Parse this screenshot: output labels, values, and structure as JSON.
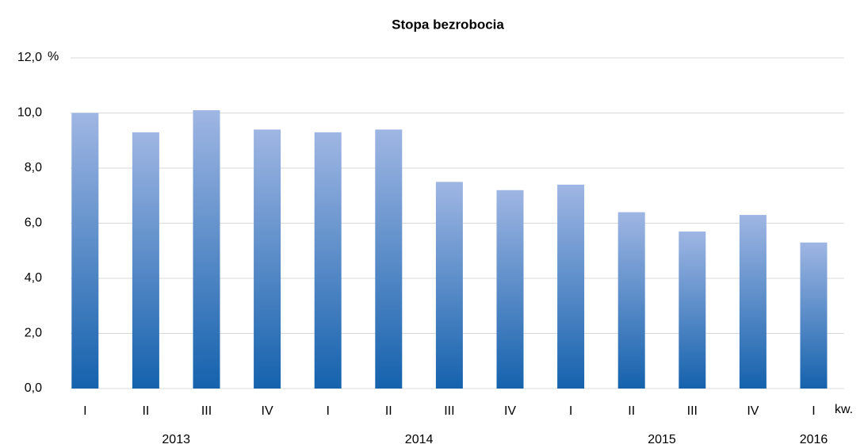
{
  "chart_data": {
    "type": "bar",
    "title": "Stopa bezrobocia",
    "y_unit": "%",
    "x_unit": "kw.",
    "categories": [
      "I",
      "II",
      "III",
      "IV",
      "I",
      "II",
      "III",
      "IV",
      "I",
      "II",
      "III",
      "IV",
      "I"
    ],
    "group_labels": [
      "2013",
      null,
      null,
      null,
      "2014",
      null,
      null,
      null,
      "2015",
      null,
      null,
      null,
      "2016"
    ],
    "values": [
      10.0,
      9.3,
      10.1,
      9.4,
      9.3,
      9.4,
      7.5,
      7.2,
      7.4,
      6.4,
      5.7,
      6.3,
      5.3
    ],
    "color": "#1562ad",
    "color_top": "#9fb6e3",
    "ylim": [
      0,
      12
    ],
    "yticks": [
      {
        "value": 0,
        "label": "0,0"
      },
      {
        "value": 2,
        "label": "2,0"
      },
      {
        "value": 4,
        "label": "4,0"
      },
      {
        "value": 6,
        "label": "6,0"
      },
      {
        "value": 8,
        "label": "8,0"
      },
      {
        "value": 10,
        "label": "10,0"
      },
      {
        "value": 12,
        "label": "12,0"
      }
    ],
    "grid": true
  }
}
